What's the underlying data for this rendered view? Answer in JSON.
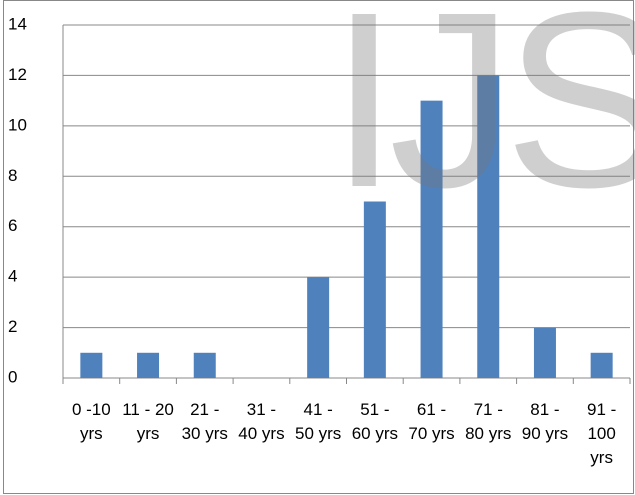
{
  "chart_data": {
    "type": "bar",
    "watermark": "IJS",
    "categories": [
      "0 -10 yrs",
      "11 - 20 yrs",
      "21 - 30 yrs",
      "31 - 40 yrs",
      "41 - 50 yrs",
      "51 - 60 yrs",
      "61 - 70 yrs",
      "71 - 80 yrs",
      "81 - 90 yrs",
      "91 - 100 yrs"
    ],
    "values": [
      1,
      1,
      1,
      0,
      4,
      7,
      11,
      12,
      2,
      1
    ],
    "color": "#4f81bd",
    "ylim": [
      0,
      14
    ],
    "yticks": [
      0,
      2,
      4,
      6,
      8,
      10,
      12,
      14
    ],
    "grid": true
  }
}
